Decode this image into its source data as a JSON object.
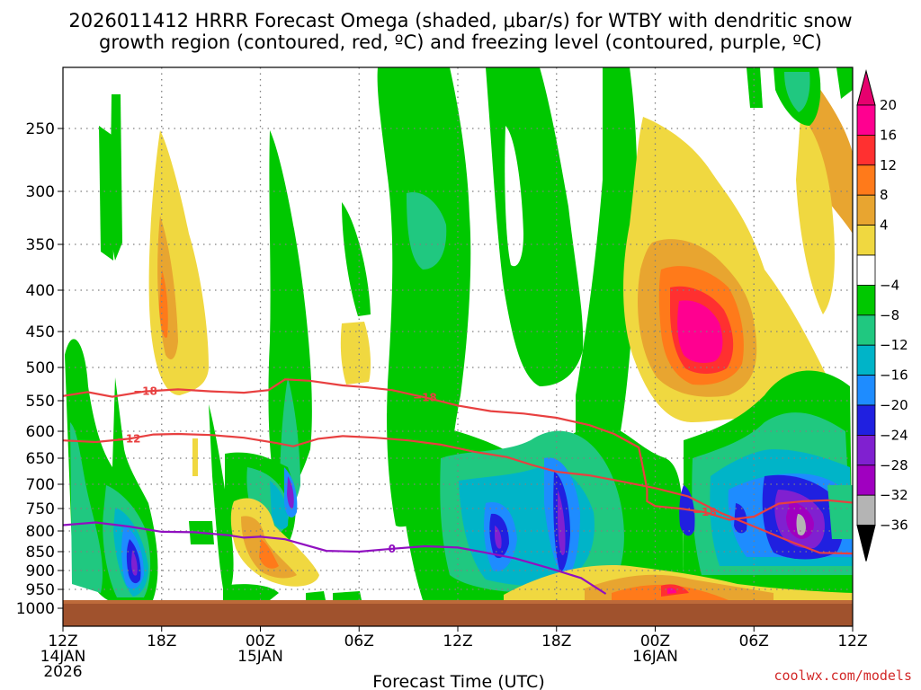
{
  "chart_data": {
    "type": "contour",
    "title_line1": "2026011412 HRRR Forecast Omega (shaded, μbar/s) for WTBY with dendritic snow",
    "title_line2": "growth region (contoured, red, ºC) and freezing level (contoured, purple, ºC)",
    "xlabel": "Forecast Time (UTC)",
    "ylabel": "",
    "credit": "coolwx.com/models",
    "x_range_hours": [
      0,
      48
    ],
    "x_ticks": [
      {
        "hour": 0,
        "label": "12Z",
        "sub1": "14JAN",
        "sub2": "2026"
      },
      {
        "hour": 6,
        "label": "18Z",
        "sub1": "",
        "sub2": ""
      },
      {
        "hour": 12,
        "label": "00Z",
        "sub1": "15JAN",
        "sub2": ""
      },
      {
        "hour": 18,
        "label": "06Z",
        "sub1": "",
        "sub2": ""
      },
      {
        "hour": 24,
        "label": "12Z",
        "sub1": "",
        "sub2": ""
      },
      {
        "hour": 30,
        "label": "18Z",
        "sub1": "",
        "sub2": ""
      },
      {
        "hour": 36,
        "label": "00Z",
        "sub1": "16JAN",
        "sub2": ""
      },
      {
        "hour": 42,
        "label": "06Z",
        "sub1": "",
        "sub2": ""
      },
      {
        "hour": 48,
        "label": "12Z",
        "sub1": "",
        "sub2": ""
      }
    ],
    "y_range_hpa": [
      1025,
      200
    ],
    "y_ticks": [
      250,
      300,
      350,
      400,
      450,
      500,
      550,
      600,
      650,
      700,
      750,
      800,
      850,
      900,
      950,
      1000
    ],
    "colorbar": {
      "labels": [
        "20",
        "16",
        "12",
        "8",
        "4",
        "−4",
        "−8",
        "−12",
        "−16",
        "−20",
        "−24",
        "−28",
        "−32",
        "−36"
      ],
      "colors": [
        "#ff0090",
        "#ff3030",
        "#ff7a1a",
        "#e8a530",
        "#f0d840",
        "#ffffff",
        "#00c800",
        "#20c880",
        "#00b4c8",
        "#1e8cff",
        "#2020e0",
        "#8020d0",
        "#a000c0",
        "#b4b4b4"
      ],
      "over_color": "#e6006e",
      "under_color": "#000000"
    },
    "dgz_contours": [
      {
        "label": "−18",
        "color": "#e84040",
        "points": [
          [
            0,
            543
          ],
          [
            1.5,
            537
          ],
          [
            3,
            544
          ],
          [
            5,
            536
          ],
          [
            7,
            533
          ],
          [
            9,
            536
          ],
          [
            11,
            538
          ],
          [
            12.5,
            534
          ],
          [
            13.5,
            518
          ],
          [
            15,
            520
          ],
          [
            17,
            527
          ],
          [
            18.5,
            530
          ],
          [
            20,
            534
          ],
          [
            22,
            545
          ],
          [
            24,
            558
          ],
          [
            26,
            567
          ],
          [
            28,
            571
          ],
          [
            30,
            578
          ],
          [
            32,
            590
          ],
          [
            33.5,
            605
          ],
          [
            35,
            630
          ],
          [
            35.2,
            660
          ],
          [
            35.5,
            710
          ],
          [
            35.5,
            735
          ],
          [
            36,
            745
          ],
          [
            37.5,
            750
          ],
          [
            39,
            758
          ],
          [
            40.5,
            775
          ],
          [
            42,
            768
          ],
          [
            43.5,
            740
          ],
          [
            45,
            735
          ],
          [
            46.5,
            733
          ],
          [
            48,
            738
          ]
        ]
      },
      {
        "label": "−12",
        "color": "#e84040",
        "points": [
          [
            0,
            617
          ],
          [
            2,
            620
          ],
          [
            4,
            614
          ],
          [
            5.5,
            606
          ],
          [
            7,
            605
          ],
          [
            9,
            607
          ],
          [
            11,
            612
          ],
          [
            13,
            622
          ],
          [
            14,
            628
          ],
          [
            15.5,
            614
          ],
          [
            17,
            609
          ],
          [
            19,
            612
          ],
          [
            21,
            617
          ],
          [
            23,
            625
          ],
          [
            25,
            638
          ],
          [
            27,
            648
          ],
          [
            28.5,
            663
          ],
          [
            30,
            676
          ],
          [
            32,
            683
          ],
          [
            34,
            695
          ],
          [
            36,
            708
          ],
          [
            38,
            725
          ],
          [
            40,
            760
          ],
          [
            42,
            790
          ],
          [
            44,
            822
          ],
          [
            46,
            853
          ],
          [
            48,
            855
          ]
        ]
      }
    ],
    "freezing_contour": {
      "label": "0",
      "color": "#9010c0",
      "points": [
        [
          0,
          787
        ],
        [
          2,
          781
        ],
        [
          4,
          790
        ],
        [
          6,
          802
        ],
        [
          8,
          803
        ],
        [
          10,
          810
        ],
        [
          11,
          816
        ],
        [
          12,
          814
        ],
        [
          13.5,
          820
        ],
        [
          16,
          848
        ],
        [
          18,
          850
        ],
        [
          20,
          843
        ],
        [
          22,
          837
        ],
        [
          24,
          840
        ],
        [
          25.5,
          851
        ],
        [
          27.5,
          868
        ],
        [
          29.5,
          893
        ],
        [
          31.5,
          920
        ],
        [
          33,
          962
        ]
      ]
    },
    "shading_regions": [
      {
        "name": "green-band-left",
        "level": "-4 to -8"
      },
      {
        "name": "blue-core-850-left",
        "level": "-20 to -28"
      },
      {
        "name": "warm-column-18z",
        "level": "4 to 12"
      },
      {
        "name": "warm-blob-00z",
        "level": "4 to 12"
      },
      {
        "name": "purple-core-03z",
        "level": "-24 to -28"
      },
      {
        "name": "green-tower-12z",
        "level": "-4 to -16"
      },
      {
        "name": "blue-core-16z",
        "level": "-20 to -28"
      },
      {
        "name": "purple-core-18z",
        "level": "-24 to -32"
      },
      {
        "name": "warm-center-00z-16jan",
        "level": "4 to 20"
      },
      {
        "name": "cold-core-09z-16jan",
        "level": "-20 to -36"
      }
    ]
  }
}
